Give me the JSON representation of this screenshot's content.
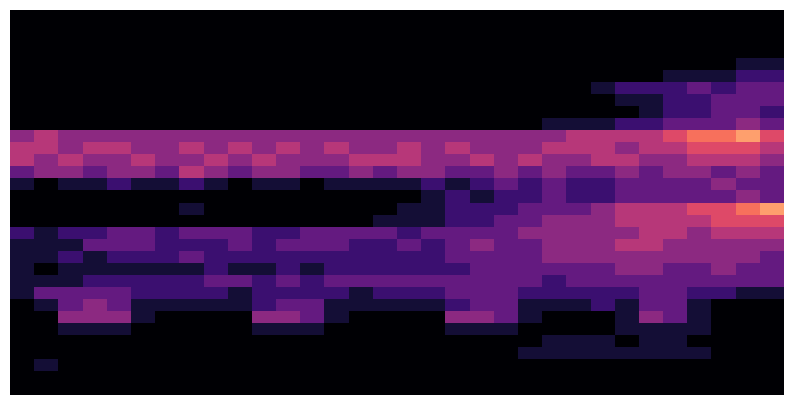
{
  "chart_data": {
    "type": "heatmap",
    "tick_labels": false,
    "zlim": [
      0,
      10
    ],
    "cells": [
      [
        0,
        0,
        0,
        0,
        0,
        0,
        0,
        0,
        0,
        0,
        0,
        0,
        0,
        0,
        0,
        0,
        0,
        0,
        0,
        0,
        0,
        0,
        0,
        0,
        0,
        0,
        0,
        0,
        0,
        0,
        0,
        0
      ],
      [
        0,
        0,
        0,
        0,
        0,
        0,
        0,
        0,
        0,
        0,
        0,
        0,
        0,
        0,
        0,
        0,
        0,
        0,
        0,
        0,
        0,
        0,
        0,
        0,
        0,
        0,
        0,
        0,
        0,
        0,
        0,
        0
      ],
      [
        0,
        0,
        0,
        0,
        0,
        0,
        0,
        0,
        0,
        0,
        0,
        0,
        0,
        0,
        0,
        0,
        0,
        0,
        0,
        0,
        0,
        0,
        0,
        0,
        0,
        0,
        0,
        0,
        0,
        0,
        0,
        0
      ],
      [
        0,
        0,
        0,
        0,
        0,
        0,
        0,
        0,
        0,
        0,
        0,
        0,
        0,
        0,
        0,
        0,
        0,
        0,
        0,
        0,
        0,
        0,
        0,
        0,
        0,
        0,
        0,
        0,
        0,
        0,
        0,
        0
      ],
      [
        0,
        0,
        0,
        0,
        0,
        0,
        0,
        0,
        0,
        0,
        0,
        0,
        0,
        0,
        0,
        0,
        0,
        0,
        0,
        0,
        0,
        0,
        0,
        0,
        0,
        0,
        0,
        0,
        0,
        0,
        1,
        1
      ],
      [
        0,
        0,
        0,
        0,
        0,
        0,
        0,
        0,
        0,
        0,
        0,
        0,
        0,
        0,
        0,
        0,
        0,
        0,
        0,
        0,
        0,
        0,
        0,
        0,
        0,
        0,
        0,
        1,
        1,
        1,
        2,
        2
      ],
      [
        0,
        0,
        0,
        0,
        0,
        0,
        0,
        0,
        0,
        0,
        0,
        0,
        0,
        0,
        0,
        0,
        0,
        0,
        0,
        0,
        0,
        0,
        0,
        0,
        1,
        2,
        2,
        2,
        3,
        2,
        3,
        3
      ],
      [
        0,
        0,
        0,
        0,
        0,
        0,
        0,
        0,
        0,
        0,
        0,
        0,
        0,
        0,
        0,
        0,
        0,
        0,
        0,
        0,
        0,
        0,
        0,
        0,
        0,
        1,
        1,
        2,
        2,
        3,
        3,
        3
      ],
      [
        0,
        0,
        0,
        0,
        0,
        0,
        0,
        0,
        0,
        0,
        0,
        0,
        0,
        0,
        0,
        0,
        0,
        0,
        0,
        0,
        0,
        0,
        0,
        0,
        0,
        0,
        1,
        2,
        2,
        3,
        3,
        2
      ],
      [
        0,
        0,
        0,
        0,
        0,
        0,
        0,
        0,
        0,
        0,
        0,
        0,
        0,
        0,
        0,
        0,
        0,
        0,
        0,
        0,
        0,
        0,
        1,
        1,
        1,
        2,
        2,
        3,
        3,
        3,
        4,
        3
      ],
      [
        4,
        5,
        4,
        4,
        4,
        4,
        4,
        4,
        4,
        4,
        4,
        4,
        4,
        4,
        4,
        4,
        4,
        4,
        4,
        4,
        4,
        4,
        4,
        5,
        5,
        5,
        5,
        6,
        7,
        7,
        8,
        6
      ],
      [
        5,
        5,
        4,
        5,
        5,
        4,
        4,
        5,
        4,
        5,
        4,
        5,
        4,
        5,
        4,
        4,
        5,
        4,
        5,
        4,
        4,
        4,
        5,
        5,
        5,
        4,
        5,
        5,
        6,
        6,
        6,
        5
      ],
      [
        5,
        4,
        5,
        4,
        4,
        5,
        4,
        4,
        5,
        4,
        5,
        4,
        4,
        4,
        5,
        5,
        5,
        4,
        4,
        5,
        4,
        5,
        4,
        4,
        5,
        5,
        4,
        4,
        5,
        5,
        5,
        4
      ],
      [
        3,
        4,
        4,
        3,
        4,
        4,
        3,
        5,
        4,
        3,
        4,
        4,
        3,
        3,
        4,
        3,
        4,
        4,
        3,
        3,
        4,
        3,
        4,
        3,
        3,
        4,
        3,
        4,
        4,
        3,
        4,
        3
      ],
      [
        1,
        0,
        1,
        1,
        2,
        1,
        1,
        2,
        1,
        0,
        1,
        1,
        0,
        1,
        1,
        1,
        1,
        2,
        1,
        2,
        3,
        2,
        3,
        2,
        2,
        3,
        3,
        3,
        3,
        4,
        3,
        3
      ],
      [
        0,
        0,
        0,
        0,
        0,
        0,
        0,
        0,
        0,
        0,
        0,
        0,
        0,
        0,
        0,
        0,
        0,
        1,
        2,
        1,
        2,
        2,
        3,
        2,
        2,
        3,
        3,
        3,
        3,
        3,
        4,
        3
      ],
      [
        0,
        0,
        0,
        0,
        0,
        0,
        0,
        1,
        0,
        0,
        0,
        0,
        0,
        0,
        0,
        0,
        1,
        1,
        2,
        2,
        2,
        3,
        3,
        3,
        4,
        5,
        5,
        5,
        6,
        6,
        7,
        8
      ],
      [
        0,
        0,
        0,
        0,
        0,
        0,
        0,
        0,
        0,
        0,
        0,
        0,
        0,
        0,
        0,
        1,
        1,
        1,
        2,
        2,
        3,
        3,
        4,
        4,
        4,
        5,
        5,
        5,
        5,
        6,
        6,
        6
      ],
      [
        2,
        1,
        2,
        2,
        3,
        3,
        2,
        3,
        3,
        3,
        2,
        2,
        3,
        3,
        3,
        3,
        2,
        3,
        3,
        3,
        3,
        4,
        4,
        4,
        4,
        4,
        5,
        5,
        4,
        5,
        5,
        5
      ],
      [
        1,
        1,
        1,
        3,
        3,
        3,
        2,
        2,
        2,
        3,
        2,
        3,
        3,
        3,
        2,
        2,
        3,
        2,
        3,
        4,
        3,
        3,
        4,
        4,
        4,
        5,
        5,
        4,
        4,
        4,
        4,
        4
      ],
      [
        1,
        1,
        2,
        1,
        2,
        2,
        2,
        3,
        2,
        2,
        2,
        2,
        2,
        2,
        2,
        2,
        2,
        2,
        3,
        3,
        3,
        3,
        4,
        4,
        4,
        4,
        4,
        4,
        4,
        4,
        4,
        3
      ],
      [
        1,
        0,
        1,
        1,
        1,
        1,
        1,
        1,
        2,
        1,
        1,
        2,
        1,
        2,
        2,
        2,
        2,
        2,
        2,
        3,
        3,
        3,
        3,
        3,
        3,
        4,
        4,
        3,
        3,
        4,
        3,
        3
      ],
      [
        1,
        1,
        1,
        2,
        2,
        2,
        2,
        2,
        3,
        3,
        2,
        3,
        2,
        3,
        3,
        3,
        3,
        3,
        3,
        3,
        3,
        3,
        2,
        3,
        3,
        3,
        3,
        3,
        3,
        3,
        3,
        3
      ],
      [
        1,
        3,
        3,
        3,
        3,
        2,
        2,
        2,
        2,
        1,
        2,
        2,
        2,
        2,
        1,
        2,
        2,
        2,
        3,
        3,
        3,
        2,
        2,
        2,
        2,
        2,
        3,
        3,
        2,
        2,
        1,
        1
      ],
      [
        0,
        1,
        3,
        4,
        3,
        1,
        1,
        1,
        1,
        1,
        2,
        3,
        3,
        1,
        1,
        1,
        1,
        1,
        2,
        3,
        3,
        1,
        1,
        1,
        2,
        1,
        3,
        3,
        1,
        0,
        0,
        0
      ],
      [
        0,
        0,
        4,
        4,
        4,
        1,
        0,
        0,
        0,
        0,
        4,
        4,
        3,
        1,
        0,
        0,
        0,
        0,
        4,
        4,
        3,
        1,
        0,
        0,
        0,
        1,
        4,
        3,
        1,
        0,
        0,
        0
      ],
      [
        0,
        0,
        1,
        1,
        1,
        0,
        0,
        0,
        0,
        0,
        1,
        1,
        1,
        0,
        0,
        0,
        0,
        0,
        1,
        1,
        1,
        0,
        0,
        0,
        0,
        1,
        1,
        1,
        1,
        0,
        0,
        0
      ],
      [
        0,
        0,
        0,
        0,
        0,
        0,
        0,
        0,
        0,
        0,
        0,
        0,
        0,
        0,
        0,
        0,
        0,
        0,
        0,
        0,
        0,
        0,
        1,
        1,
        1,
        0,
        1,
        1,
        0,
        0,
        0,
        0
      ],
      [
        0,
        0,
        0,
        0,
        0,
        0,
        0,
        0,
        0,
        0,
        0,
        0,
        0,
        0,
        0,
        0,
        0,
        0,
        0,
        0,
        0,
        1,
        1,
        1,
        1,
        1,
        1,
        1,
        1,
        0,
        0,
        0
      ],
      [
        0,
        1,
        0,
        0,
        0,
        0,
        0,
        0,
        0,
        0,
        0,
        0,
        0,
        0,
        0,
        0,
        0,
        0,
        0,
        0,
        0,
        0,
        0,
        0,
        0,
        0,
        0,
        0,
        0,
        0,
        0,
        0
      ],
      [
        0,
        0,
        0,
        0,
        0,
        0,
        0,
        0,
        0,
        0,
        0,
        0,
        0,
        0,
        0,
        0,
        0,
        0,
        0,
        0,
        0,
        0,
        0,
        0,
        0,
        0,
        0,
        0,
        0,
        0,
        0,
        0
      ],
      [
        0,
        0,
        0,
        0,
        0,
        0,
        0,
        0,
        0,
        0,
        0,
        0,
        0,
        0,
        0,
        0,
        0,
        0,
        0,
        0,
        0,
        0,
        0,
        0,
        0,
        0,
        0,
        0,
        0,
        0,
        0,
        0
      ]
    ]
  }
}
